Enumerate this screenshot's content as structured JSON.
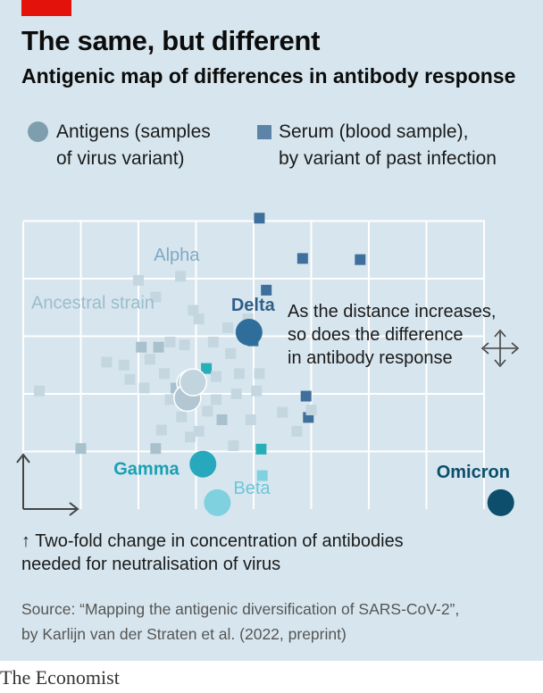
{
  "header": {
    "title": "The same, but different",
    "subtitle": "Antigenic map of differences in antibody response"
  },
  "legend": {
    "antigen_label": [
      "Antigens (samples",
      "of virus variant)"
    ],
    "serum_label": [
      "Serum (blood sample),",
      "by variant of past infection"
    ]
  },
  "notes": {
    "distance": [
      "As the distance increases,",
      "so does the difference",
      "in antibody response"
    ],
    "scale": [
      "↑ Two-fold change in concentration of antibodies",
      "needed for neutralisation of virus"
    ]
  },
  "source": [
    "Source: “Mapping the antigenic diversification of SARS-CoV-2”,",
    "by Karlijn van der Straten et al. (2022, preprint)"
  ],
  "brand": "The Economist",
  "colors": {
    "background": "#d7e6ee",
    "grid": "#ffffff",
    "other_antigen": "#bccfd9",
    "other_serum": "#c4d6df",
    "ancestral": "#b2c7d3",
    "alpha": "#c2d4de",
    "delta": "#2f6e9b",
    "gamma": "#27a8bd",
    "beta": "#7fd1e0",
    "omicron": "#0c4e6b",
    "serum_dark": "#3f6f9c",
    "serum_cyan": "#28aeb7",
    "axis": "#444444"
  },
  "chart_data": {
    "type": "scatter",
    "grid": true,
    "grid_unit": "two-fold change",
    "xlim": [
      0,
      8.5
    ],
    "ylim": [
      0,
      5
    ],
    "axis_arrows": true,
    "legend_position": "top",
    "series": [
      {
        "name": "Antigens (samples of virus variant)",
        "marker": "circle",
        "points": [
          {
            "label": "Delta",
            "x": 3.92,
            "y": 3.07,
            "color": "delta",
            "label_dx": -20,
            "label_dy": -24
          },
          {
            "label": "Gamma",
            "x": 3.12,
            "y": 0.78,
            "color": "gamma",
            "label_dx": -100,
            "label_dy": 12
          },
          {
            "label": "Beta",
            "x": 3.37,
            "y": 0.11,
            "color": "beta",
            "label_dx": 18,
            "label_dy": -10
          },
          {
            "label": "Omicron",
            "x": 8.29,
            "y": 0.11,
            "color": "omicron",
            "label_dx": -72,
            "label_dy": -28
          },
          {
            "label": "Ancestral strain",
            "x": 2.9,
            "y": 2.18,
            "color": "ancestral",
            "label_dx": -178,
            "label_dy": -84
          },
          {
            "label": "",
            "x": 2.85,
            "y": 1.93,
            "color": "ancestral"
          },
          {
            "label": "Alpha",
            "x": 2.95,
            "y": 2.2,
            "color": "alpha",
            "label_dx": -44,
            "label_dy": -136
          }
        ]
      },
      {
        "name": "Serum (blood sample), by variant of past infection",
        "marker": "square",
        "points": [
          {
            "x": 4.1,
            "y": 5.05,
            "c": "dark"
          },
          {
            "x": 4.85,
            "y": 4.35,
            "c": "dark"
          },
          {
            "x": 5.85,
            "y": 4.33,
            "c": "dark"
          },
          {
            "x": 4.22,
            "y": 3.8,
            "c": "dark"
          },
          {
            "x": 3.99,
            "y": 2.92,
            "c": "dark"
          },
          {
            "x": 4.91,
            "y": 1.96,
            "c": "dark"
          },
          {
            "x": 4.95,
            "y": 1.59,
            "c": "dark"
          },
          {
            "x": 3.18,
            "y": 2.44,
            "c": "cyan"
          },
          {
            "x": 4.13,
            "y": 1.04,
            "c": "cyan"
          },
          {
            "x": 4.15,
            "y": 0.58,
            "c": "beta"
          },
          {
            "x": 2.73,
            "y": 4.04,
            "c": "light"
          },
          {
            "x": 3.05,
            "y": 3.3,
            "c": "light"
          },
          {
            "x": 2.0,
            "y": 3.97,
            "c": "light"
          },
          {
            "x": 2.3,
            "y": 3.68,
            "c": "light"
          },
          {
            "x": 2.95,
            "y": 3.45,
            "c": "light"
          },
          {
            "x": 3.9,
            "y": 3.3,
            "c": "light"
          },
          {
            "x": 2.05,
            "y": 2.81,
            "c": "med"
          },
          {
            "x": 2.35,
            "y": 2.81,
            "c": "med"
          },
          {
            "x": 2.2,
            "y": 2.6,
            "c": "light"
          },
          {
            "x": 2.55,
            "y": 2.9,
            "c": "light"
          },
          {
            "x": 2.8,
            "y": 2.85,
            "c": "light"
          },
          {
            "x": 3.3,
            "y": 2.9,
            "c": "light"
          },
          {
            "x": 3.6,
            "y": 2.7,
            "c": "light"
          },
          {
            "x": 3.35,
            "y": 2.3,
            "c": "light"
          },
          {
            "x": 3.75,
            "y": 2.35,
            "c": "light"
          },
          {
            "x": 3.7,
            "y": 2.0,
            "c": "light"
          },
          {
            "x": 4.05,
            "y": 2.05,
            "c": "light"
          },
          {
            "x": 2.45,
            "y": 2.35,
            "c": "light"
          },
          {
            "x": 2.1,
            "y": 2.1,
            "c": "light"
          },
          {
            "x": 2.55,
            "y": 1.9,
            "c": "light"
          },
          {
            "x": 2.75,
            "y": 1.6,
            "c": "light"
          },
          {
            "x": 3.2,
            "y": 1.7,
            "c": "light"
          },
          {
            "x": 3.35,
            "y": 1.9,
            "c": "light"
          },
          {
            "x": 3.45,
            "y": 1.55,
            "c": "med"
          },
          {
            "x": 2.4,
            "y": 1.37,
            "c": "light"
          },
          {
            "x": 2.9,
            "y": 1.25,
            "c": "light"
          },
          {
            "x": 3.05,
            "y": 1.35,
            "c": "light"
          },
          {
            "x": 3.65,
            "y": 1.1,
            "c": "light"
          },
          {
            "x": 2.3,
            "y": 1.05,
            "c": "med"
          },
          {
            "x": 1.0,
            "y": 1.05,
            "c": "med"
          },
          {
            "x": 1.45,
            "y": 2.55,
            "c": "light"
          },
          {
            "x": 1.75,
            "y": 2.5,
            "c": "light"
          },
          {
            "x": 0.28,
            "y": 2.05,
            "c": "light"
          },
          {
            "x": 4.5,
            "y": 1.68,
            "c": "light"
          },
          {
            "x": 5.0,
            "y": 1.72,
            "c": "light"
          },
          {
            "x": 4.75,
            "y": 1.35,
            "c": "light"
          },
          {
            "x": 4.1,
            "y": 2.35,
            "c": "light"
          },
          {
            "x": 3.55,
            "y": 3.15,
            "c": "light"
          },
          {
            "x": 1.85,
            "y": 2.25,
            "c": "light"
          },
          {
            "x": 2.65,
            "y": 2.1,
            "c": "med"
          },
          {
            "x": 3.95,
            "y": 1.55,
            "c": "light"
          }
        ]
      }
    ]
  }
}
